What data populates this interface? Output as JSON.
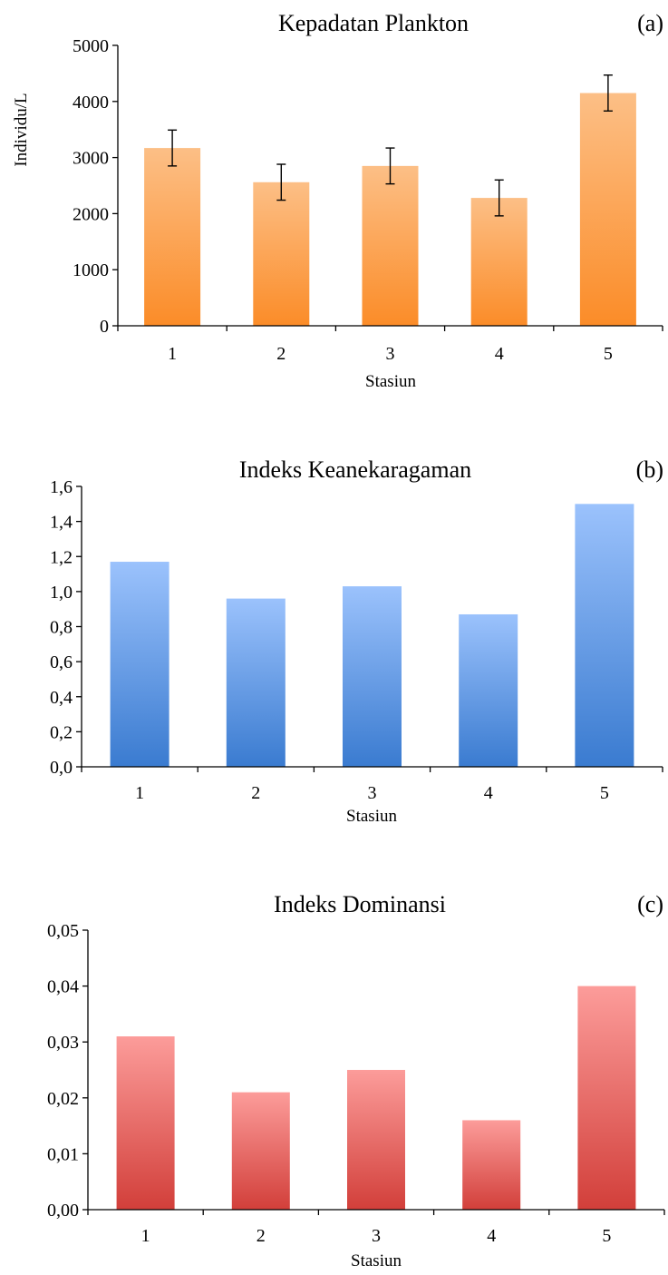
{
  "chart_data": [
    {
      "id": "a",
      "type": "bar",
      "title": "Kepadatan Plankton",
      "panel_label": "(a)",
      "xlabel": "Stasiun",
      "ylabel": "Individu/L",
      "categories": [
        "1",
        "2",
        "3",
        "4",
        "5"
      ],
      "values": [
        3170,
        2560,
        2850,
        2280,
        4150
      ],
      "error": [
        320,
        320,
        320,
        320,
        320
      ],
      "ylim": [
        0,
        5000
      ],
      "yticks": [
        "0",
        "1000",
        "2000",
        "3000",
        "4000",
        "5000"
      ],
      "color_top": "#fcbf86",
      "color_bottom": "#fb8c28"
    },
    {
      "id": "b",
      "type": "bar",
      "title": "Indeks Keanekaragaman",
      "panel_label": "(b)",
      "xlabel": "Stasiun",
      "ylabel": "",
      "categories": [
        "1",
        "2",
        "3",
        "4",
        "5"
      ],
      "values": [
        1.17,
        0.96,
        1.03,
        0.87,
        1.5
      ],
      "ylim": [
        0,
        1.6
      ],
      "yticks": [
        "0,0",
        "0,2",
        "0,4",
        "0,6",
        "0,8",
        "1,0",
        "1,2",
        "1,4",
        "1,6"
      ],
      "color_top": "#9bc2fc",
      "color_bottom": "#3a7bd0"
    },
    {
      "id": "c",
      "type": "bar",
      "title": "Indeks Dominansi",
      "panel_label": "(c)",
      "xlabel": "Stasiun",
      "ylabel": "",
      "categories": [
        "1",
        "2",
        "3",
        "4",
        "5"
      ],
      "values": [
        0.031,
        0.021,
        0.025,
        0.016,
        0.04
      ],
      "ylim": [
        0,
        0.05
      ],
      "yticks": [
        "0,00",
        "0,01",
        "0,02",
        "0,03",
        "0,04",
        "0,05"
      ],
      "color_top": "#fc9c9a",
      "color_bottom": "#d23f3a"
    }
  ]
}
